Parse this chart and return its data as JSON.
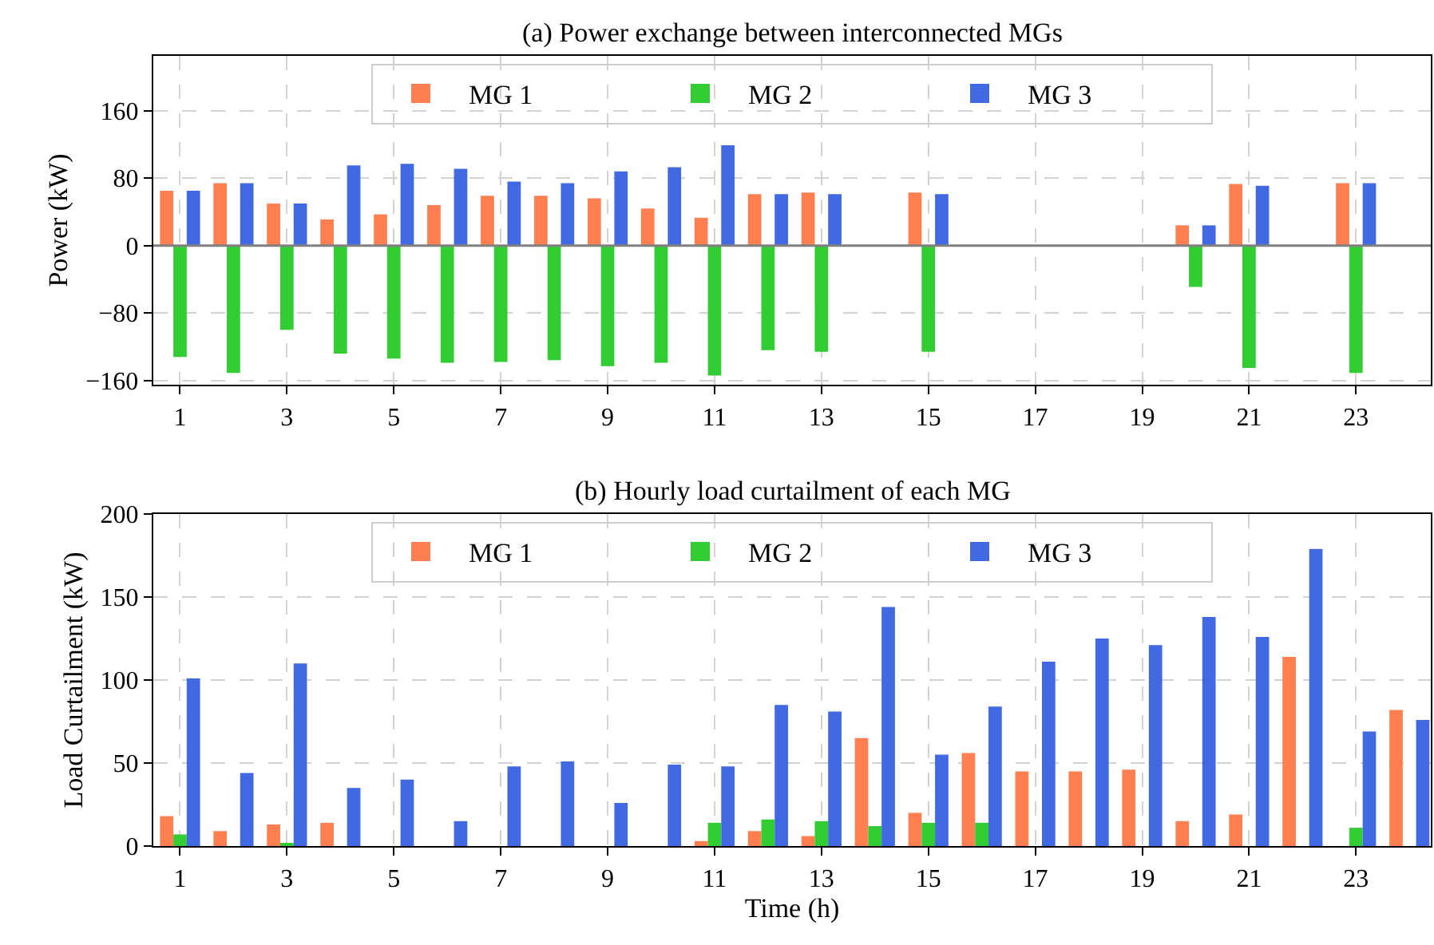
{
  "chart_data": [
    {
      "type": "bar",
      "title": "(a) Power exchange between interconnected MGs",
      "ylabel": "Power (kW)",
      "x": [
        1,
        2,
        3,
        4,
        5,
        6,
        7,
        8,
        9,
        10,
        11,
        12,
        13,
        14,
        15,
        16,
        17,
        18,
        19,
        20,
        21,
        22,
        23
      ],
      "xlim": [
        0.5,
        24.4
      ],
      "xticks": [
        1,
        3,
        5,
        7,
        9,
        11,
        13,
        15,
        17,
        19,
        21,
        23
      ],
      "ylim": [
        -165,
        225
      ],
      "yticks": [
        -160,
        -80,
        0,
        80,
        160
      ],
      "grid": true,
      "legend": "top",
      "ref_lines": [
        {
          "axis": "y",
          "value": 0,
          "color": "#808080"
        }
      ],
      "series": [
        {
          "name": "MG 1",
          "color": "#ff7f50",
          "values": [
            65,
            74,
            50,
            31,
            37,
            48,
            59,
            59,
            56,
            44,
            33,
            61,
            63,
            null,
            63,
            null,
            null,
            null,
            null,
            24,
            73,
            null,
            74
          ]
        },
        {
          "name": "MG 2",
          "color": "#32cd32",
          "values": [
            -132,
            -151,
            -100,
            -128,
            -134,
            -139,
            -138,
            -136,
            -143,
            -139,
            -154,
            -124,
            -126,
            null,
            -126,
            null,
            null,
            null,
            null,
            -49,
            -145,
            null,
            -151
          ]
        },
        {
          "name": "MG 3",
          "color": "#4169e1",
          "values": [
            65,
            74,
            50,
            95,
            97,
            91,
            76,
            74,
            88,
            93,
            119,
            61,
            61,
            null,
            61,
            null,
            null,
            null,
            null,
            24,
            71,
            null,
            74
          ]
        }
      ]
    },
    {
      "type": "bar",
      "title": "(b) Hourly load curtailment of each MG",
      "xlabel": "Time (h)",
      "ylabel": "Load Curtailment (kW)",
      "x": [
        1,
        2,
        3,
        4,
        5,
        6,
        7,
        8,
        9,
        10,
        11,
        12,
        13,
        14,
        15,
        16,
        17,
        18,
        19,
        20,
        21,
        22,
        23,
        24
      ],
      "xlim": [
        0.5,
        24.4
      ],
      "xticks": [
        1,
        3,
        5,
        7,
        9,
        11,
        13,
        15,
        17,
        19,
        21,
        23
      ],
      "ylim": [
        0,
        200
      ],
      "yticks": [
        0,
        50,
        100,
        150,
        200
      ],
      "grid": true,
      "legend": "top",
      "series": [
        {
          "name": "MG 1",
          "color": "#ff7f50",
          "values": [
            18,
            9,
            13,
            14,
            null,
            null,
            null,
            null,
            null,
            null,
            3,
            9,
            6,
            65,
            20,
            56,
            45,
            45,
            46,
            15,
            19,
            114,
            null,
            82
          ]
        },
        {
          "name": "MG 2",
          "color": "#32cd32",
          "values": [
            7,
            null,
            1,
            null,
            null,
            null,
            null,
            null,
            null,
            null,
            14,
            16,
            15,
            12,
            14,
            14,
            null,
            null,
            null,
            null,
            null,
            null,
            11,
            null
          ]
        },
        {
          "name": "MG 3",
          "color": "#4169e1",
          "values": [
            101,
            44,
            110,
            35,
            40,
            15,
            48,
            51,
            26,
            49,
            48,
            85,
            81,
            144,
            55,
            84,
            111,
            125,
            121,
            138,
            126,
            179,
            69,
            76
          ]
        }
      ]
    }
  ]
}
